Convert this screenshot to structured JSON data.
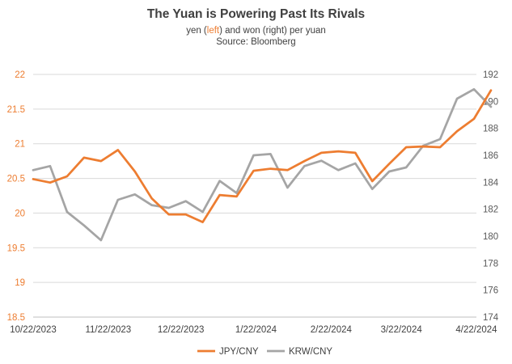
{
  "chart_data": {
    "type": "line",
    "title": "The Yuan is Powering Past Its Rivals",
    "subtitle": {
      "before": "yen (",
      "highlight": "left",
      "after": ") and won (right) per yuan"
    },
    "source": "Source: Bloomberg",
    "x_tick_labels": [
      "10/22/2023",
      "11/22/2023",
      "12/22/2023",
      "1/22/2024",
      "2/22/2024",
      "3/22/2024",
      "4/22/2024"
    ],
    "y_left": {
      "ticks": [
        18.5,
        19,
        19.5,
        20,
        20.5,
        21,
        21.5,
        22
      ],
      "ylim": [
        18.5,
        22
      ],
      "color": "#ED7D31"
    },
    "y_right": {
      "ticks": [
        174,
        176,
        178,
        180,
        182,
        184,
        186,
        188,
        190,
        192
      ],
      "ylim": [
        174,
        192
      ]
    },
    "grid": "horizontal",
    "legend_position": "bottom",
    "series": [
      {
        "name": "JPY/CNY",
        "axis": "left",
        "color": "#ED7D31",
        "x": [
          "10/22/2023",
          "10/29/2023",
          "11/5/2023",
          "11/12/2023",
          "11/19/2023",
          "11/26/2023",
          "12/3/2023",
          "12/10/2023",
          "12/17/2023",
          "12/24/2023",
          "12/31/2023",
          "1/7/2024",
          "1/14/2024",
          "1/21/2024",
          "1/28/2024",
          "2/4/2024",
          "2/11/2024",
          "2/18/2024",
          "2/25/2024",
          "3/3/2024",
          "3/10/2024",
          "3/17/2024",
          "3/24/2024",
          "3/31/2024",
          "4/7/2024",
          "4/14/2024",
          "4/21/2024",
          "4/28/2024"
        ],
        "values": [
          20.49,
          20.44,
          20.53,
          20.8,
          20.75,
          20.91,
          20.6,
          20.21,
          19.98,
          19.98,
          19.87,
          20.26,
          20.24,
          20.61,
          20.64,
          20.62,
          20.75,
          20.87,
          20.89,
          20.87,
          20.46,
          20.71,
          20.95,
          20.96,
          20.95,
          21.18,
          21.36,
          21.77
        ]
      },
      {
        "name": "KRW/CNY",
        "axis": "right",
        "color": "#A5A5A5",
        "x": [
          "10/22/2023",
          "10/29/2023",
          "11/5/2023",
          "11/12/2023",
          "11/19/2023",
          "11/26/2023",
          "12/3/2023",
          "12/10/2023",
          "12/17/2023",
          "12/24/2023",
          "12/31/2023",
          "1/7/2024",
          "1/14/2024",
          "1/21/2024",
          "1/28/2024",
          "2/4/2024",
          "2/11/2024",
          "2/18/2024",
          "2/25/2024",
          "3/3/2024",
          "3/10/2024",
          "3/17/2024",
          "3/24/2024",
          "3/31/2024",
          "4/7/2024",
          "4/14/2024",
          "4/21/2024",
          "4/28/2024"
        ],
        "values": [
          184.9,
          185.2,
          181.8,
          180.8,
          179.7,
          182.7,
          183.1,
          182.3,
          182.1,
          182.6,
          181.8,
          184.1,
          183.2,
          186.0,
          186.1,
          183.6,
          185.2,
          185.6,
          184.9,
          185.4,
          183.5,
          184.8,
          185.1,
          186.7,
          187.2,
          190.2,
          190.9,
          189.6
        ]
      }
    ]
  }
}
